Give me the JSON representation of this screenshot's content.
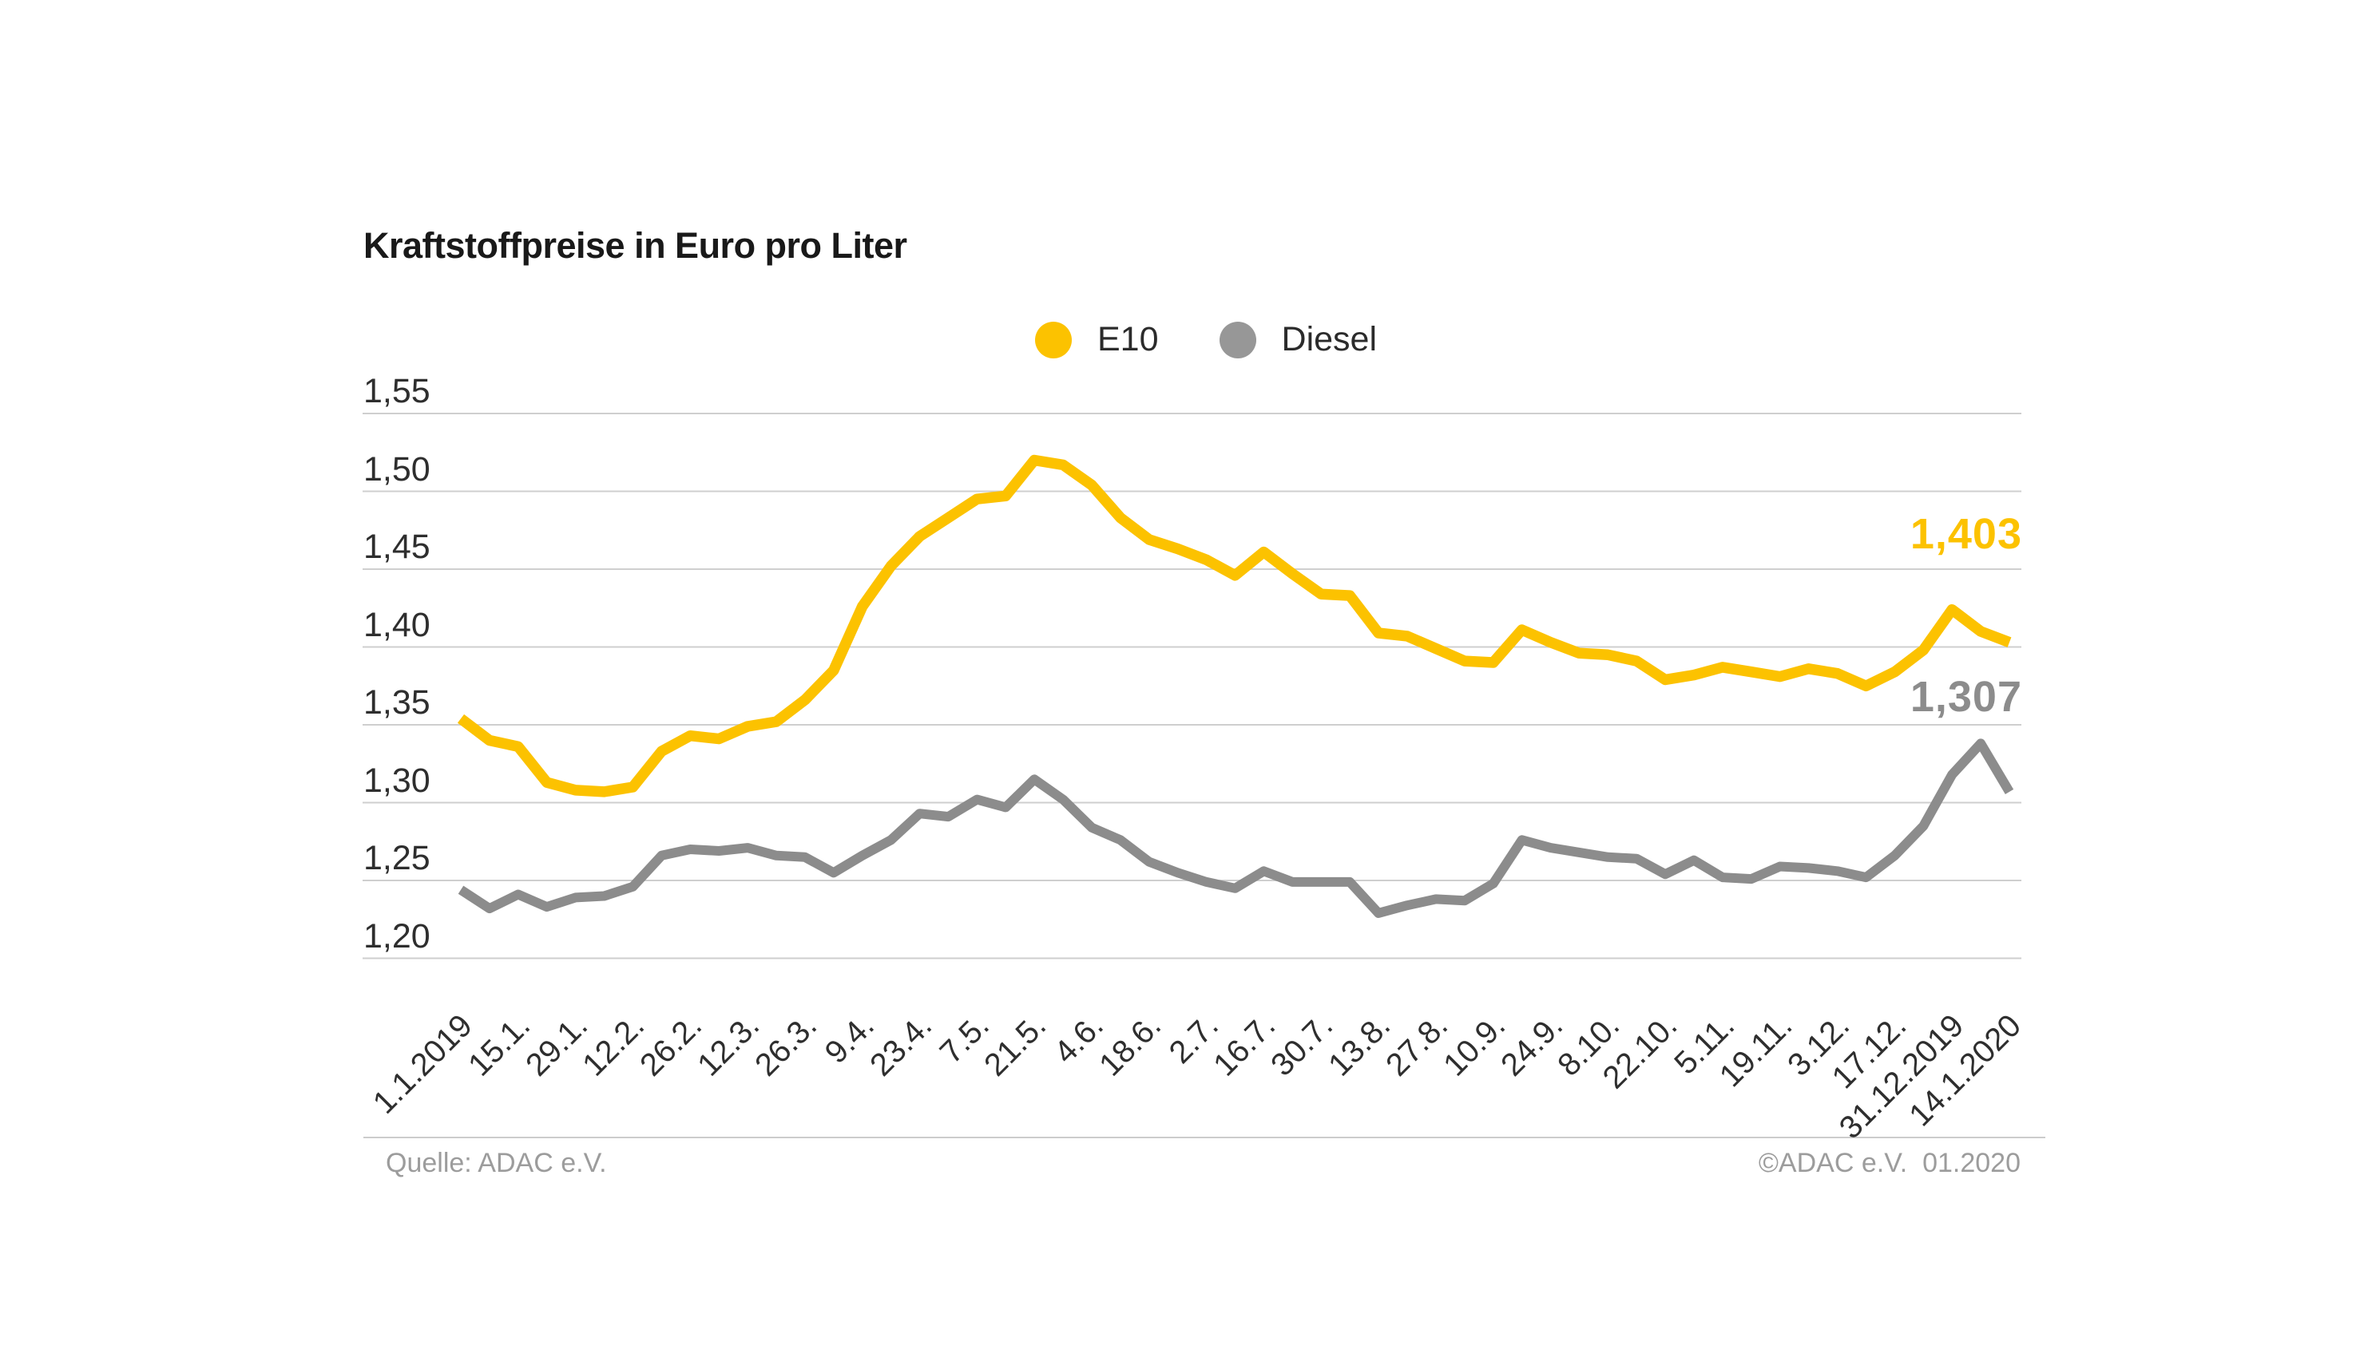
{
  "title": "Kraftstoffpreise in Euro pro Liter",
  "legend": [
    {
      "label": "E10",
      "color": "#FCC200"
    },
    {
      "label": "Diesel",
      "color": "#979797"
    }
  ],
  "end_labels": {
    "e10": "1,403",
    "diesel": "1,307"
  },
  "footer": {
    "source": "Quelle: ADAC e.V.",
    "copyright": "©ADAC e.V.  01.2020"
  },
  "chart_data": {
    "type": "line",
    "title": "Kraftstoffpreise in Euro pro Liter",
    "ylabel": "Euro pro Liter",
    "xlabel": "",
    "ylim": [
      1.2,
      1.55
    ],
    "grid": true,
    "legend_position": "top",
    "x_note": "weekly data points from 1.1.2019 to 14.1.2020; axis labeled every two weeks",
    "y_tick_labels": [
      "1,55",
      "1,50",
      "1,45",
      "1,40",
      "1,35",
      "1,30",
      "1,25",
      "1,20"
    ],
    "x_tick_labels": [
      "1.1.2019",
      "15.1.",
      "29.1.",
      "12.2.",
      "26.2.",
      "12.3.",
      "26.3.",
      "9.4.",
      "23.4.",
      "7.5.",
      "21.5.",
      "4.6.",
      "18.6.",
      "2.7.",
      "16.7.",
      "30.7.",
      "13.8.",
      "27.8.",
      "10.9.",
      "24.9.",
      "8.10.",
      "22.10.",
      "5.11.",
      "19.11.",
      "3.12.",
      "17.12.",
      "31.12.2019",
      "14.1.2020"
    ],
    "series": [
      {
        "name": "E10",
        "color": "#FCC200",
        "end_value_label": "1,403",
        "values": [
          1.354,
          1.34,
          1.336,
          1.313,
          1.308,
          1.307,
          1.31,
          1.333,
          1.343,
          1.341,
          1.349,
          1.352,
          1.366,
          1.385,
          1.426,
          1.452,
          1.471,
          1.483,
          1.495,
          1.497,
          1.52,
          1.517,
          1.504,
          1.483,
          1.469,
          1.463,
          1.456,
          1.446,
          1.461,
          1.447,
          1.434,
          1.433,
          1.409,
          1.407,
          1.399,
          1.391,
          1.39,
          1.411,
          1.403,
          1.396,
          1.395,
          1.391,
          1.379,
          1.382,
          1.387,
          1.384,
          1.381,
          1.386,
          1.383,
          1.375,
          1.384,
          1.398,
          1.424,
          1.41,
          1.403
        ]
      },
      {
        "name": "Diesel",
        "color": "#8C8C8C",
        "end_value_label": "1,307",
        "values": [
          1.244,
          1.232,
          1.241,
          1.233,
          1.239,
          1.24,
          1.246,
          1.266,
          1.27,
          1.269,
          1.271,
          1.266,
          1.265,
          1.255,
          1.266,
          1.276,
          1.293,
          1.291,
          1.302,
          1.297,
          1.315,
          1.302,
          1.284,
          1.276,
          1.262,
          1.255,
          1.249,
          1.245,
          1.256,
          1.249,
          1.249,
          1.249,
          1.229,
          1.234,
          1.238,
          1.237,
          1.248,
          1.276,
          1.271,
          1.268,
          1.265,
          1.264,
          1.254,
          1.263,
          1.252,
          1.251,
          1.259,
          1.258,
          1.256,
          1.252,
          1.266,
          1.285,
          1.318,
          1.338,
          1.307
        ]
      }
    ]
  }
}
